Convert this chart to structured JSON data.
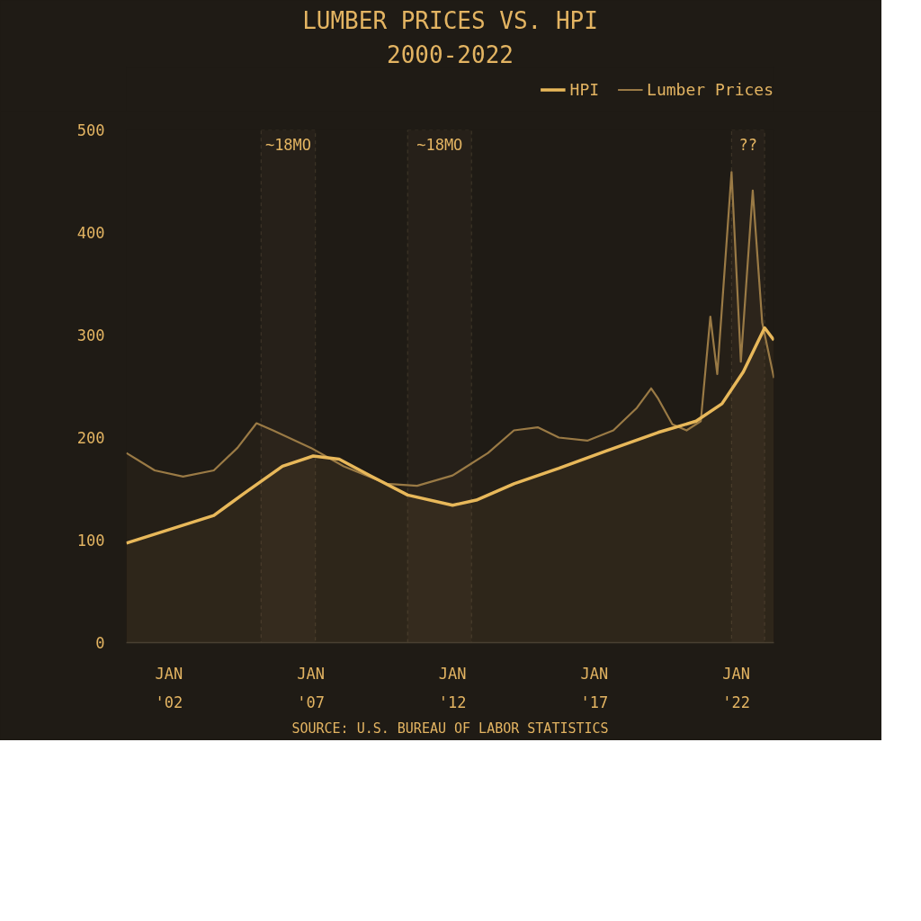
{
  "chart_data": {
    "type": "area",
    "title": "LUMBER PRICES VS. HPI",
    "subtitle": "2000-2022",
    "x": [
      "2000-07",
      "2001-07",
      "2002-07",
      "2003-08",
      "2004-06",
      "2005-02",
      "2005-09",
      "2007-01",
      "2008-03",
      "2009-09",
      "2010-10",
      "2012-01",
      "2013-04",
      "2014-03",
      "2015-01",
      "2015-10",
      "2016-10",
      "2017-09",
      "2018-07",
      "2019-01",
      "2019-04",
      "2019-10",
      "2020-04",
      "2020-10",
      "2021-02",
      "2021-05",
      "2021-11",
      "2022-03",
      "2022-08",
      "2022-12",
      "2023-05"
    ],
    "series": [
      {
        "name": "HPI",
        "color": "#e8b85a",
        "x": [
          "2000-07",
          "2003-08",
          "2004-09",
          "2006-01",
          "2007-02",
          "2008-01",
          "2009-02",
          "2010-06",
          "2012-01",
          "2012-11",
          "2014-03",
          "2015-10",
          "2017-06",
          "2019-04",
          "2020-08",
          "2021-07",
          "2022-04",
          "2023-01",
          "2023-05"
        ],
        "values": [
          97,
          124,
          146,
          172,
          182,
          179,
          163,
          144,
          134,
          139,
          155,
          170,
          187,
          205,
          216,
          233,
          264,
          307,
          295
        ]
      },
      {
        "name": "Lumber Prices",
        "color": "#9a7a45",
        "values": [
          185,
          168,
          162,
          168,
          190,
          214,
          207,
          190,
          172,
          155,
          153,
          163,
          185,
          207,
          210,
          200,
          197,
          207,
          229,
          248,
          238,
          213,
          207,
          216,
          318,
          262,
          459,
          274,
          441,
          312,
          258
        ]
      }
    ],
    "xlim": [
      "2000-07",
      "2023-05"
    ],
    "xticks": [
      {
        "value": "2002-01",
        "label": "JAN\n'02"
      },
      {
        "value": "2007-01",
        "label": "JAN\n'07"
      },
      {
        "value": "2012-01",
        "label": "JAN\n'12"
      },
      {
        "value": "2017-01",
        "label": "JAN\n'17"
      },
      {
        "value": "2022-01",
        "label": "JAN\n'22"
      }
    ],
    "ylim": [
      0,
      500
    ],
    "yticks": [
      0,
      100,
      200,
      300,
      400,
      500
    ],
    "bands": [
      {
        "axis": "x",
        "from": "2005-04",
        "to": "2007-03",
        "label": "~18MO"
      },
      {
        "axis": "x",
        "from": "2010-06",
        "to": "2012-09",
        "label": "~18MO"
      },
      {
        "axis": "x",
        "from": "2021-11",
        "to": "2023-01",
        "label": "??"
      }
    ],
    "annotations": [
      "SOURCE: U.S. BUREAU OF LABOR STATISTICS"
    ],
    "grid": false,
    "legend": "top right",
    "line_style": "solid"
  }
}
